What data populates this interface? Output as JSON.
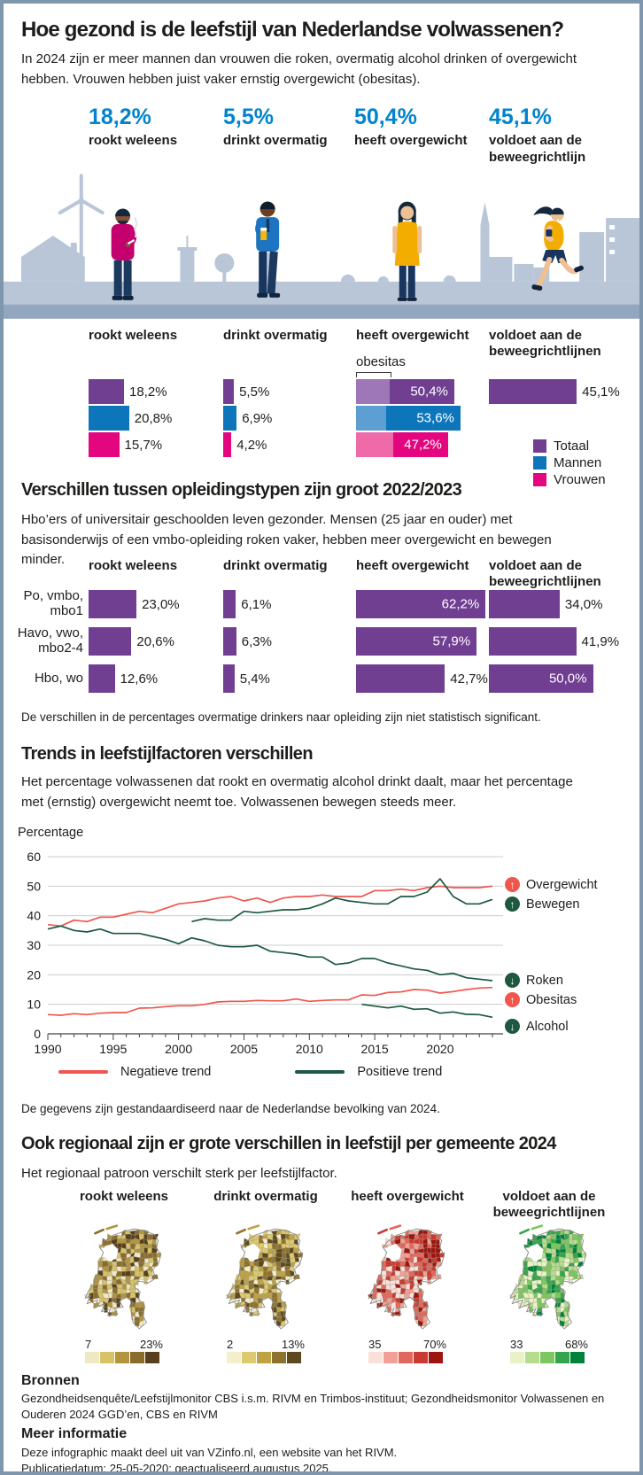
{
  "header": {
    "title": "Hoe gezond is de leefstijl van Nederlandse volwassenen?",
    "intro": "In 2024 zijn er meer mannen dan vrouwen die roken, overmatig alcohol drinken of overgewicht hebben. Vrouwen hebben juist vaker ernstig overgewicht (obesitas)."
  },
  "key_stats": [
    {
      "value": "18,2%",
      "label": "rookt weleens"
    },
    {
      "value": "5,5%",
      "label": "drinkt overmatig"
    },
    {
      "value": "50,4%",
      "label": "heeft overgewicht"
    },
    {
      "value": "45,1%",
      "label": "voldoet aan de\nbeweegrichtlijn"
    }
  ],
  "sections": {
    "education": {
      "title": "Verschillen tussen opleidingstypen zijn groot 2022/2023",
      "intro": "Hbo’ers of universitair geschoolden leven gezonder. Mensen (25 jaar en ouder) met basisonderwijs of een vmbo-opleiding roken vaker, hebben meer overgewicht en bewegen minder.",
      "footnote": "De verschillen in de percentages overmatige drinkers naar opleiding zijn niet statistisch significant."
    },
    "trends": {
      "title": "Trends in leefstijlfactoren verschillen",
      "intro": "Het percentage volwassenen dat rookt en overmatig alcohol drinkt daalt, maar het percentage met (ernstig) overgewicht neemt toe. Volwassenen bewegen steeds meer.",
      "footnote": "De gegevens zijn gestandaardiseerd naar de Nederlandse bevolking van 2024."
    },
    "regional": {
      "title": "Ook regionaal zijn er grote verschillen in leefstijl per gemeente 2024",
      "intro": "Het regionaal patroon verschilt sterk per leefstijlfactor."
    }
  },
  "chart_data": [
    {
      "id": "gender-bars",
      "type": "bar",
      "series": [
        "Totaal",
        "Mannen",
        "Vrouwen"
      ],
      "series_colors": [
        "#703f92",
        "#0d76bb",
        "#e4067e"
      ],
      "series_colors_light": [
        "#9d77b8",
        "#5d9fd3",
        "#ef6aa8"
      ],
      "obesitas_label": "obesitas",
      "groups": [
        {
          "column": "rookt weleens",
          "values": [
            18.2,
            20.8,
            15.7
          ],
          "labels": [
            "18,2%",
            "20,8%",
            "15,7%"
          ]
        },
        {
          "column": "drinkt overmatig",
          "values": [
            5.5,
            6.9,
            4.2
          ],
          "labels": [
            "5,5%",
            "6,9%",
            "4,2%"
          ]
        },
        {
          "column": "heeft overgewicht",
          "values": [
            50.4,
            53.6,
            47.2
          ],
          "labels": [
            "50,4%",
            "53,6%",
            "47,2%"
          ],
          "labels_inside": true,
          "obesitas_fractions": [
            0.34,
            0.29,
            0.4
          ]
        },
        {
          "column": "voldoet aan de beweegrichtlijnen",
          "values": [
            45.1
          ],
          "labels": [
            "45,1%"
          ]
        }
      ],
      "legend": [
        {
          "label": "Totaal",
          "color": "#703f92"
        },
        {
          "label": "Mannen",
          "color": "#0d76bb"
        },
        {
          "label": "Vrouwen",
          "color": "#e4067e"
        }
      ]
    },
    {
      "id": "education-bars",
      "type": "bar",
      "bar_color": "#703f92",
      "row_labels": [
        "Po, vmbo,\nmbo1",
        "Havo, vwo,\nmbo2-4",
        "Hbo, wo"
      ],
      "columns": [
        {
          "title": "rookt weleens",
          "values": [
            23.0,
            20.6,
            12.6
          ],
          "labels": [
            "23,0%",
            "20,6%",
            "12,6%"
          ],
          "inside": [
            false,
            false,
            false
          ]
        },
        {
          "title": "drinkt overmatig",
          "values": [
            6.1,
            6.3,
            5.4
          ],
          "labels": [
            "6,1%",
            "6,3%",
            "5,4%"
          ],
          "inside": [
            false,
            false,
            false
          ]
        },
        {
          "title": "heeft overgewicht",
          "values": [
            62.2,
            57.9,
            42.7
          ],
          "labels": [
            "62,2%",
            "57,9%",
            "42,7%"
          ],
          "inside": [
            true,
            true,
            false
          ]
        },
        {
          "title": "voldoet aan de beweegrichtlijnen",
          "values": [
            34.0,
            41.9,
            50.0
          ],
          "labels": [
            "34,0%",
            "41,9%",
            "50,0%"
          ],
          "inside": [
            false,
            false,
            true
          ]
        }
      ]
    },
    {
      "id": "trends-lines",
      "type": "line",
      "ylabel": "Percentage",
      "ylim": [
        0,
        60
      ],
      "yticks": [
        0,
        10,
        20,
        30,
        40,
        50,
        60
      ],
      "x_start": 1990,
      "x_end": 2024,
      "xticks": [
        1990,
        1995,
        2000,
        2005,
        2010,
        2015,
        2020
      ],
      "series": [
        {
          "name": "Overgewicht",
          "color": "#f0564e",
          "trend": "up",
          "start": 1990,
          "values": [
            37,
            36.5,
            38.5,
            38,
            39.5,
            39.5,
            40.5,
            41.5,
            41,
            42.5,
            44,
            44.5,
            45,
            46,
            46.5,
            45,
            46,
            44.5,
            46,
            46.5,
            46.5,
            47,
            46.5,
            46.5,
            46.5,
            48.5,
            48.5,
            49,
            48.5,
            49.5,
            50,
            49.5,
            49.5,
            49.5,
            50
          ]
        },
        {
          "name": "Bewegen",
          "color": "#1c5940",
          "trend": "up",
          "start": 2001,
          "values": [
            38,
            39,
            38.5,
            38.5,
            41.5,
            41,
            41.5,
            42,
            42,
            42.5,
            44,
            46,
            45,
            44.5,
            44,
            44,
            46.5,
            46.5,
            48,
            52.5,
            46.5,
            44,
            44,
            45.5
          ]
        },
        {
          "name": "Roken",
          "color": "#1c5940",
          "trend": "down",
          "start": 1990,
          "values": [
            35.5,
            36.5,
            35,
            34.5,
            35.5,
            34,
            34,
            34,
            33,
            32,
            30.5,
            32.5,
            31.5,
            30,
            29.5,
            29.5,
            30,
            28,
            27.5,
            27,
            26,
            26,
            23.5,
            24,
            25.5,
            25.5,
            24,
            23,
            22,
            21.5,
            20,
            20.5,
            19,
            18.5,
            18
          ]
        },
        {
          "name": "Obesitas",
          "color": "#f0564e",
          "trend": "up",
          "start": 1990,
          "values": [
            6.5,
            6.3,
            6.8,
            6.5,
            7,
            7.2,
            7.2,
            8.7,
            8.8,
            9.2,
            9.5,
            9.5,
            10,
            10.8,
            11,
            11,
            11.3,
            11.2,
            11.2,
            11.8,
            11,
            11.3,
            11.5,
            11.5,
            13.2,
            13,
            14,
            14.2,
            15,
            14.8,
            13.8,
            14.3,
            15,
            15.5,
            15.7
          ]
        },
        {
          "name": "Alcohol",
          "color": "#1c5940",
          "trend": "down",
          "start": 2014,
          "values": [
            10,
            9.4,
            8.8,
            9.4,
            8.3,
            8.5,
            7,
            7.4,
            6.6,
            6.5,
            5.6
          ]
        }
      ],
      "legend": [
        {
          "label": "Negatieve trend",
          "color": "#f0564e"
        },
        {
          "label": "Positieve trend",
          "color": "#1c5940"
        }
      ]
    },
    {
      "id": "regional-maps",
      "type": "choropleth",
      "maps": [
        {
          "title": "rookt weleens",
          "min": "7",
          "max": "23%",
          "palette": [
            "#f0e7c3",
            "#d8c266",
            "#b3953e",
            "#8a6c2d",
            "#57401b"
          ]
        },
        {
          "title": "drinkt overmatig",
          "min": "2",
          "max": "13%",
          "palette": [
            "#f4eecd",
            "#ddc96f",
            "#bfa244",
            "#8f722e",
            "#5e481d"
          ]
        },
        {
          "title": "heeft overgewicht",
          "min": "35",
          "max": "70%",
          "palette": [
            "#fbe0da",
            "#f0a097",
            "#e2675c",
            "#c93a30",
            "#9c150f"
          ]
        },
        {
          "title": "voldoet aan de beweegrichtlijnen",
          "min": "33",
          "max": "68%",
          "palette": [
            "#e8f2c6",
            "#b5dd8d",
            "#7cc75f",
            "#33a64b",
            "#00823a"
          ]
        }
      ]
    }
  ],
  "footer": {
    "bronnen_title": "Bronnen",
    "bronnen_text": "Gezondheidsenquête/Leefstijlmonitor CBS i.s.m. RIVM en Trimbos-instituut; Gezondheidsmonitor Volwassenen en Ouderen 2024 GGD’en, CBS en RIVM",
    "meer_title": "Meer informatie",
    "meer_line1": "Deze infographic maakt deel uit van VZinfo.nl, een website van het RIVM.",
    "meer_line2": "Publicatiedatum: 25-05-2020; geactualiseerd augustus 2025."
  }
}
